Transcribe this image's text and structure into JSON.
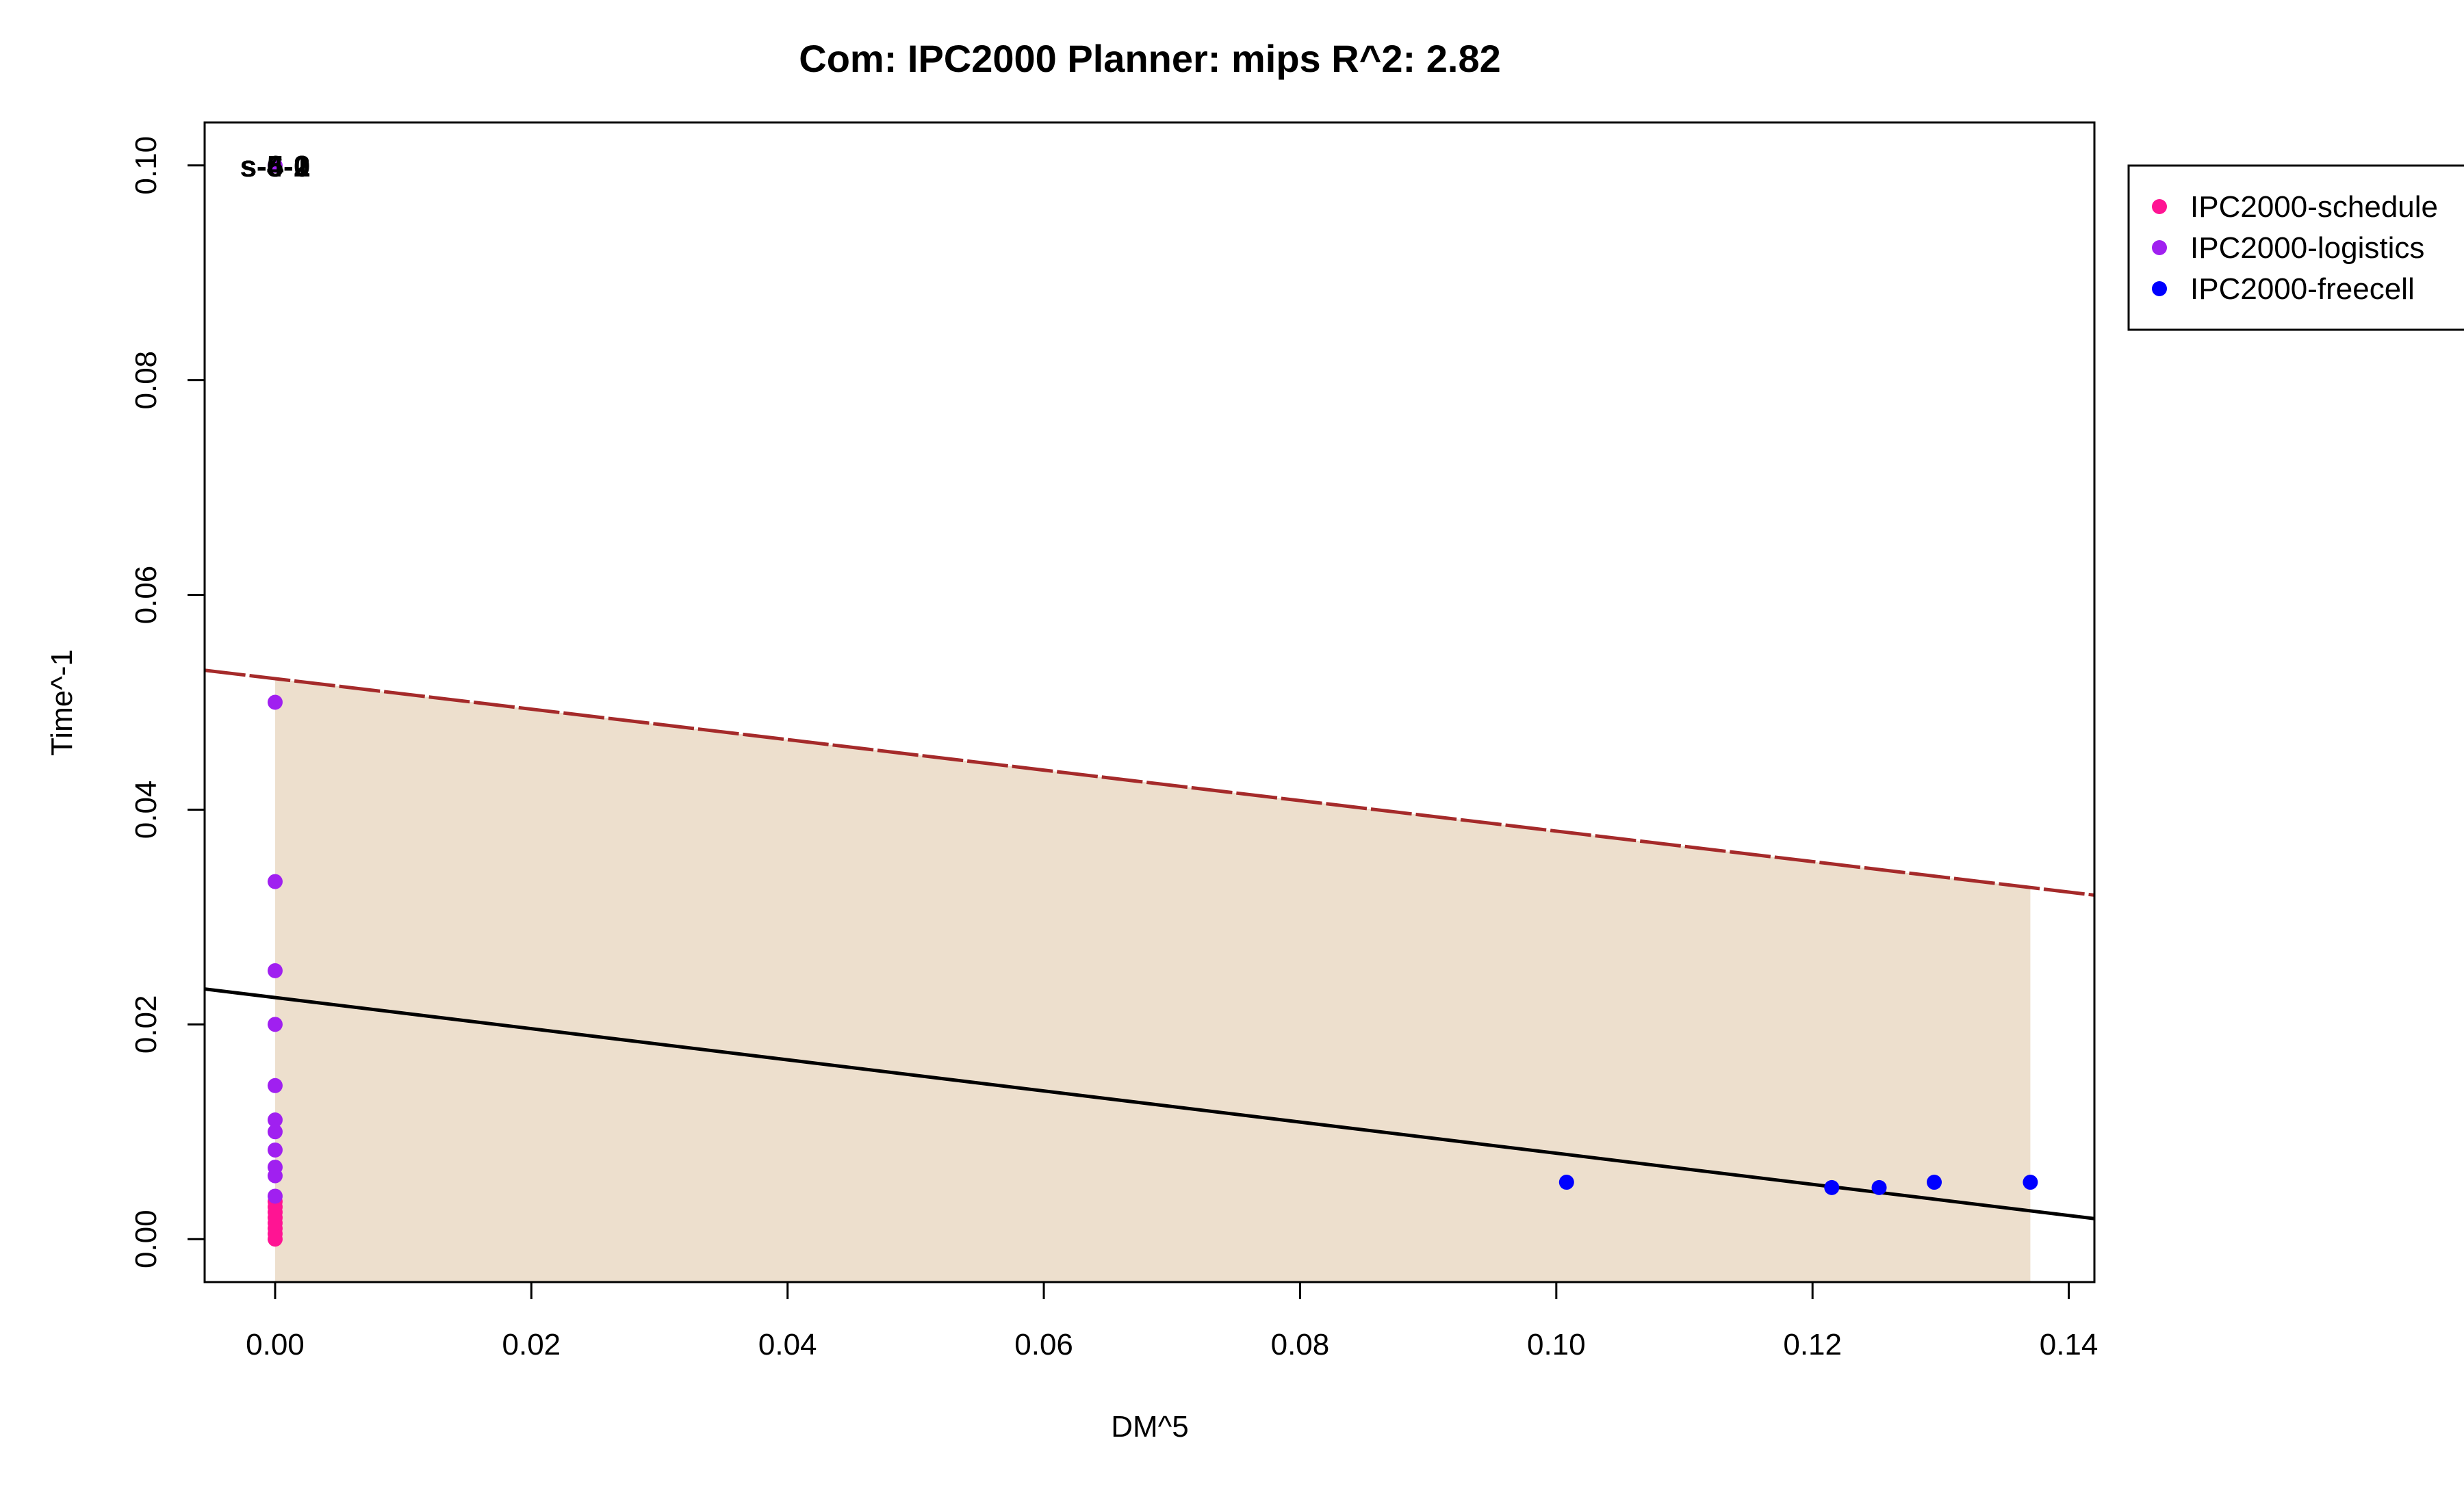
{
  "chart_data": {
    "type": "scatter",
    "title": "Com: IPC2000 Planner: mips R^2: 2.82",
    "xlabel": "DM^5",
    "ylabel": "Time^-1",
    "xlim": [
      -0.0055,
      0.142
    ],
    "ylim": [
      -0.004,
      0.104
    ],
    "x_ticks": [
      0.0,
      0.02,
      0.04,
      0.06,
      0.08,
      0.1,
      0.12,
      0.14
    ],
    "y_ticks": [
      0.0,
      0.02,
      0.04,
      0.06,
      0.08,
      0.1
    ],
    "x_tick_labels": [
      "0.00",
      "0.02",
      "0.04",
      "0.06",
      "0.08",
      "0.10",
      "0.12",
      "0.14"
    ],
    "y_tick_labels": [
      "0.00",
      "0.02",
      "0.04",
      "0.06",
      "0.08",
      "0.10"
    ],
    "grid": false,
    "legend_position": "right",
    "series": [
      {
        "name": "IPC2000-schedule",
        "color": "#ff1493",
        "points": [
          [
            0,
            0.0
          ],
          [
            0,
            0.0005
          ],
          [
            0,
            0.001
          ],
          [
            0,
            0.0015
          ],
          [
            0,
            0.002
          ],
          [
            0,
            0.0025
          ],
          [
            0,
            0.003
          ],
          [
            0,
            0.0035
          ]
        ]
      },
      {
        "name": "IPC2000-logistics",
        "color": "#a020f0",
        "points": [
          [
            0,
            0.05
          ],
          [
            0,
            0.0333
          ],
          [
            0,
            0.025
          ],
          [
            0,
            0.02
          ],
          [
            0,
            0.0143
          ],
          [
            0,
            0.0111
          ],
          [
            0,
            0.01
          ],
          [
            0,
            0.0083
          ],
          [
            0,
            0.0067
          ],
          [
            0,
            0.0059
          ],
          [
            0,
            0.004
          ],
          [
            0,
            0.1
          ]
        ]
      },
      {
        "name": "IPC2000-freecell",
        "color": "#0000ff",
        "points": [
          [
            0.1008,
            0.0053
          ],
          [
            0.1215,
            0.0048
          ],
          [
            0.1252,
            0.0048
          ],
          [
            0.1295,
            0.0053
          ],
          [
            0.137,
            0.0053
          ]
        ]
      }
    ],
    "fit_line": {
      "intercept": 0.0225,
      "slope": -0.145,
      "color": "#000000"
    },
    "upper_line": {
      "intercept": 0.0522,
      "slope": -0.142,
      "color": "#a52a2a",
      "style": "dashed"
    },
    "shaded_region": {
      "x_from": 0.0,
      "x_to": 0.137,
      "color": "#eddfcd"
    },
    "annotations": [
      {
        "text": "s-5-2",
        "x": 0.0,
        "y": 0.1
      },
      {
        "text": "s-6-0",
        "x": 0.0,
        "y": 0.1
      },
      {
        "text": "s-4-1",
        "x": 0.0,
        "y": 0.1
      }
    ]
  }
}
